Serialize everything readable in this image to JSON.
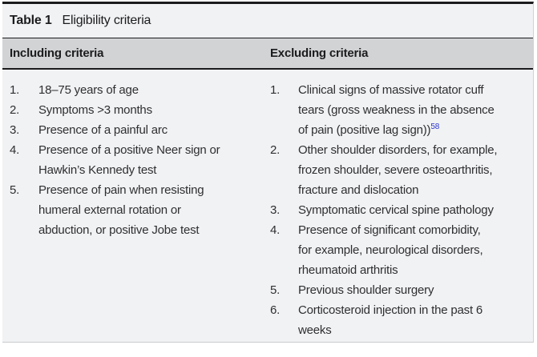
{
  "table": {
    "caption_label": "Table 1",
    "caption_title": "Eligibility criteria",
    "including": {
      "header": "Including criteria",
      "items": [
        {
          "num": "1.",
          "text": "18–75 years of age"
        },
        {
          "num": "2.",
          "text": "Symptoms >3 months"
        },
        {
          "num": "3.",
          "text": "Presence of a painful arc"
        },
        {
          "num": "4.",
          "text": "Presence of a positive Neer sign or\nHawkin’s Kennedy test"
        },
        {
          "num": "5.",
          "text": "Presence of pain when resisting\nhumeral external rotation or\nabduction, or positive Jobe test"
        }
      ]
    },
    "excluding": {
      "header": "Excluding criteria",
      "items": [
        {
          "num": "1.",
          "text": "Clinical signs of massive rotator cuff\ntears (gross weakness in the absence\nof pain (positive lag sign))",
          "ref": "58"
        },
        {
          "num": "2.",
          "text": "Other shoulder disorders, for example,\nfrozen shoulder, severe osteoarthritis,\nfracture and dislocation"
        },
        {
          "num": "3.",
          "text": "Symptomatic cervical spine pathology"
        },
        {
          "num": "4.",
          "text": "Presence of significant comorbidity,\nfor example, neurological disorders,\nrheumatoid arthritis"
        },
        {
          "num": "5.",
          "text": "Previous shoulder surgery"
        },
        {
          "num": "6.",
          "text": "Corticosteroid injection in the past 6\nweeks"
        }
      ]
    },
    "colors": {
      "top_rule": "#1b1b1d",
      "header_bg": "#d1d3d4",
      "body_bg": "#f1f2f4",
      "body_text": "#2f2f31",
      "reference_link": "#2b35cc",
      "bottom_rule": "#c9cbcd"
    }
  }
}
